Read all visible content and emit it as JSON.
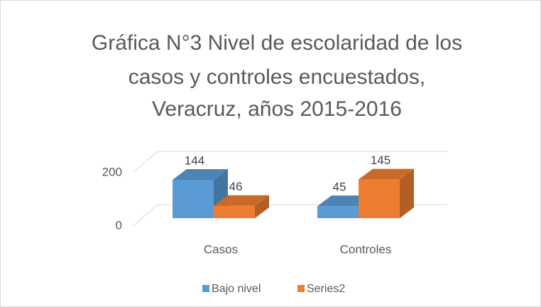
{
  "chart_data": {
    "type": "bar3d",
    "title": [
      "Gráfica N°3  Nivel de escolaridad de los",
      "casos y controles encuestados,",
      "Veracruz, años 2015-2016"
    ],
    "categories": [
      "Casos",
      "Controles"
    ],
    "series": [
      {
        "name": "Bajo nivel",
        "color": "#5b9bd5",
        "values": [
          144,
          45
        ]
      },
      {
        "name": "Series2",
        "color": "#ed7d31",
        "values": [
          46,
          145
        ]
      }
    ],
    "ylim": [
      0,
      200
    ],
    "yticks": [
      0,
      200
    ],
    "grid": true,
    "legend": "bottom"
  }
}
